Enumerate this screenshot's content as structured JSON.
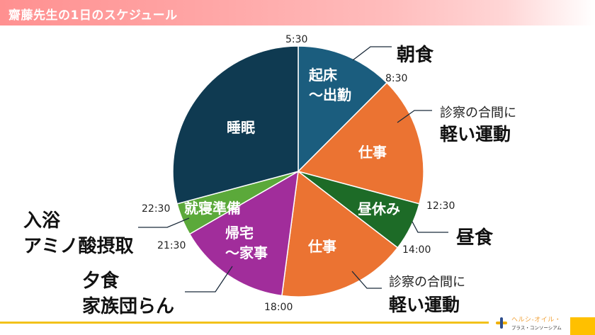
{
  "header": {
    "title": "齋藤先生の1日のスケジュール"
  },
  "chart_data": {
    "type": "pie",
    "title": "齋藤先生の1日のスケジュール",
    "start_time": "5:30",
    "start_angle_deg": 0,
    "unit": "hours",
    "total_hours": 24,
    "categories": [
      "起床〜出勤",
      "仕事",
      "昼休み",
      "仕事",
      "帰宅〜家事",
      "就寝準備",
      "睡眠"
    ],
    "values": [
      3,
      4,
      1.5,
      4,
      3.5,
      1,
      7
    ],
    "slices": [
      {
        "label": "起床〜出勤",
        "label_lines": [
          "起床",
          "〜出勤"
        ],
        "from": "5:30",
        "to": "8:30",
        "hours": 3,
        "color": "#1b5d7e"
      },
      {
        "label": "仕事",
        "label_lines": [
          "仕事"
        ],
        "from": "8:30",
        "to": "12:30",
        "hours": 4,
        "color": "#eb7332"
      },
      {
        "label": "昼休み",
        "label_lines": [
          "昼休み"
        ],
        "from": "12:30",
        "to": "14:00",
        "hours": 1.5,
        "color": "#1d6b27"
      },
      {
        "label": "仕事",
        "label_lines": [
          "仕事"
        ],
        "from": "14:00",
        "to": "18:00",
        "hours": 4,
        "color": "#eb7332"
      },
      {
        "label": "帰宅〜家事",
        "label_lines": [
          "帰宅",
          "〜家事"
        ],
        "from": "18:00",
        "to": "21:30",
        "hours": 3.5,
        "color": "#a12d9b"
      },
      {
        "label": "就寝準備",
        "label_lines": [
          "就寝準備"
        ],
        "from": "21:30",
        "to": "22:30",
        "hours": 1,
        "color": "#5ba93a"
      },
      {
        "label": "睡眠",
        "label_lines": [
          "睡眠"
        ],
        "from": "22:30",
        "to": "5:30",
        "hours": 7,
        "color": "#0f3a51"
      }
    ],
    "time_ticks": [
      "5:30",
      "8:30",
      "12:30",
      "14:00",
      "18:00",
      "21:30",
      "22:30"
    ],
    "annotations": [
      {
        "target": "起床〜出勤",
        "lines": [
          "朝食"
        ]
      },
      {
        "target": "仕事 (8:30-12:30)",
        "lines": [
          "診察の合間に",
          "軽い運動"
        ]
      },
      {
        "target": "昼休み",
        "lines": [
          "昼食"
        ]
      },
      {
        "target": "仕事 (14:00-18:00)",
        "lines": [
          "診察の合間に",
          "軽い運動"
        ]
      },
      {
        "target": "帰宅〜家事",
        "lines": [
          "夕食",
          "家族団らん"
        ]
      },
      {
        "target": "就寝準備",
        "lines": [
          "入浴",
          "アミノ酸摂取"
        ]
      }
    ],
    "legend": null,
    "grid": false
  },
  "annotations": {
    "breakfast": "朝食",
    "exercise_upper": {
      "small": "診察の合間に",
      "big": "軽い運動"
    },
    "lunch": "昼食",
    "exercise_lower": {
      "small": "診察の合間に",
      "big": "軽い運動"
    },
    "dinner": {
      "line1": "夕食",
      "line2": "家族団らん"
    },
    "bath": {
      "line1": "入浴",
      "line2": "アミノ酸摂取"
    }
  },
  "footer": {
    "logo_line1": "ヘルシ-オイル・",
    "logo_line2": "プラス・コンソーシアム",
    "accent_color": "#f2c21b",
    "corner_color": "#ffc000"
  }
}
